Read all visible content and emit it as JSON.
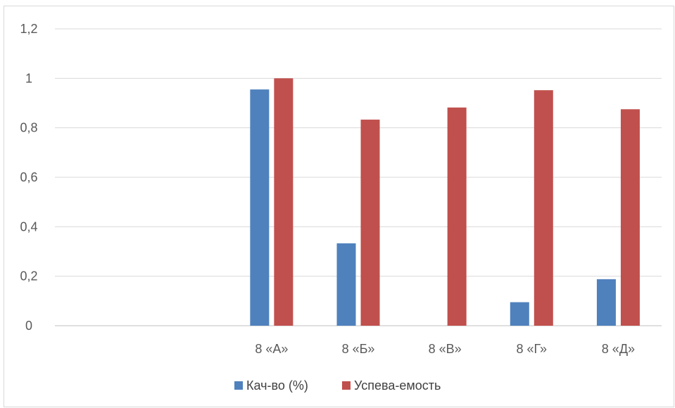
{
  "chart_data": {
    "type": "bar",
    "categories": [
      "",
      "",
      "8 «А»",
      "8 «Б»",
      "8 «В»",
      "8 «Г»",
      "8 «Д»"
    ],
    "series": [
      {
        "name": "Кач-во (%)",
        "color": "#4f81bd",
        "values": [
          null,
          null,
          0.955,
          0.333,
          0,
          0.095,
          0.188
        ]
      },
      {
        "name": "Успева-емость",
        "color": "#c0504d",
        "values": [
          null,
          null,
          1.0,
          0.833,
          0.882,
          0.952,
          0.875
        ]
      }
    ],
    "yticks": [
      "0",
      "0,2",
      "0,4",
      "0,6",
      "0,8",
      "1",
      "1,2"
    ],
    "ylim": [
      0,
      1.2
    ],
    "grid": true,
    "legend_position": "bottom",
    "title": "",
    "xlabel": "",
    "ylabel": ""
  }
}
